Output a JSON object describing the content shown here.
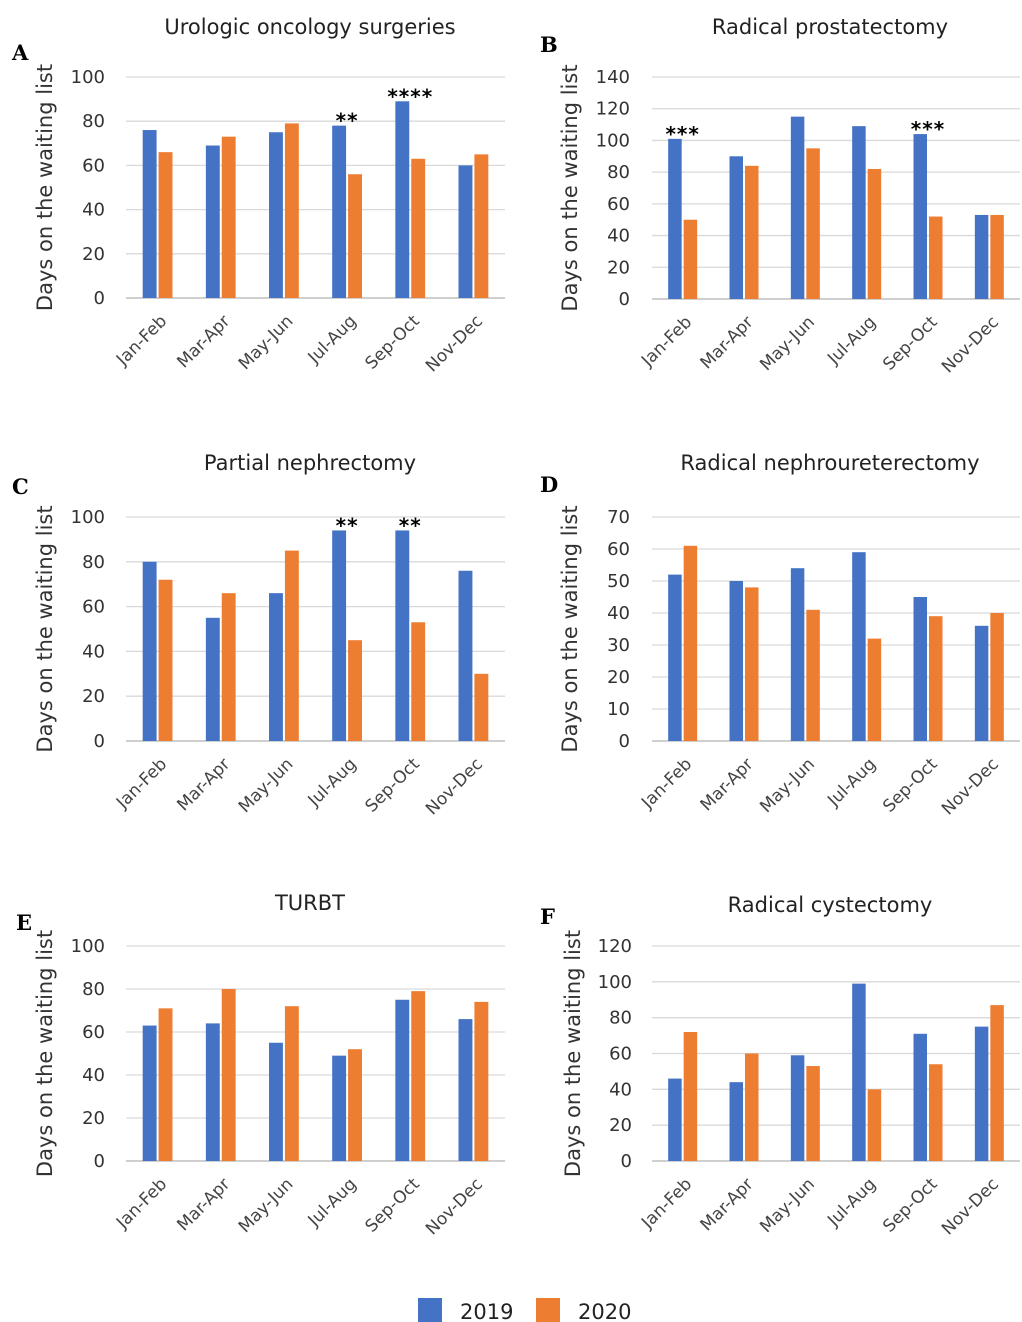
{
  "series_colors": {
    "2019": "#4472C4",
    "2020": "#ED7D31"
  },
  "legend": [
    {
      "name": "2019",
      "color": "#4472C4"
    },
    {
      "name": "2020",
      "color": "#ED7D31"
    }
  ],
  "chart_data": [
    {
      "letter": "A",
      "type": "bar",
      "title": "Urologic oncology surgeries",
      "ylabel": "Days on the waiting list",
      "xlabel": "",
      "categories": [
        "Jan-Feb",
        "Mar-Apr",
        "May-Jun",
        "Jul-Aug",
        "Sep-Oct",
        "Nov-Dec"
      ],
      "ylim": [
        0,
        100
      ],
      "yticks": [
        0,
        20,
        40,
        60,
        80,
        100
      ],
      "grid": true,
      "legend": "bottom",
      "series": [
        {
          "name": "2019",
          "values": [
            76,
            69,
            75,
            78,
            89,
            60
          ]
        },
        {
          "name": "2020",
          "values": [
            66,
            73,
            79,
            56,
            63,
            65
          ]
        }
      ],
      "annotations": [
        {
          "category": "Jul-Aug",
          "text": "**"
        },
        {
          "category": "Sep-Oct",
          "text": "****"
        }
      ]
    },
    {
      "letter": "B",
      "type": "bar",
      "title": "Radical prostatectomy",
      "ylabel": "Days on the waiting list",
      "xlabel": "",
      "categories": [
        "Jan-Feb",
        "Mar-Apr",
        "May-Jun",
        "Jul-Aug",
        "Sep-Oct",
        "Nov-Dec"
      ],
      "ylim": [
        0,
        140
      ],
      "yticks": [
        0,
        20,
        40,
        60,
        80,
        100,
        120,
        140
      ],
      "grid": true,
      "legend": "bottom",
      "series": [
        {
          "name": "2019",
          "values": [
            101,
            90,
            115,
            109,
            104,
            53
          ]
        },
        {
          "name": "2020",
          "values": [
            50,
            84,
            95,
            82,
            52,
            53
          ]
        }
      ],
      "annotations": [
        {
          "category": "Jan-Feb",
          "text": "***"
        },
        {
          "category": "Sep-Oct",
          "text": "***"
        }
      ]
    },
    {
      "letter": "C",
      "type": "bar",
      "title": "Partial nephrectomy",
      "ylabel": "Days on the waiting list",
      "xlabel": "",
      "categories": [
        "Jan-Feb",
        "Mar-Apr",
        "May-Jun",
        "Jul-Aug",
        "Sep-Oct",
        "Nov-Dec"
      ],
      "ylim": [
        0,
        100
      ],
      "yticks": [
        0,
        20,
        40,
        60,
        80,
        100
      ],
      "grid": true,
      "legend": "bottom",
      "series": [
        {
          "name": "2019",
          "values": [
            80,
            55,
            66,
            94,
            94,
            76
          ]
        },
        {
          "name": "2020",
          "values": [
            72,
            66,
            85,
            45,
            53,
            30
          ]
        }
      ],
      "annotations": [
        {
          "category": "Jul-Aug",
          "text": "**"
        },
        {
          "category": "Sep-Oct",
          "text": "**"
        }
      ]
    },
    {
      "letter": "D",
      "type": "bar",
      "title": "Radical nephroureterectomy",
      "ylabel": "Days on the waiting list",
      "xlabel": "",
      "categories": [
        "Jan-Feb",
        "Mar-Apr",
        "May-Jun",
        "Jul-Aug",
        "Sep-Oct",
        "Nov-Dec"
      ],
      "ylim": [
        0,
        70
      ],
      "yticks": [
        0,
        10,
        20,
        30,
        40,
        50,
        60,
        70
      ],
      "grid": true,
      "legend": "bottom",
      "series": [
        {
          "name": "2019",
          "values": [
            52,
            50,
            54,
            59,
            45,
            36
          ]
        },
        {
          "name": "2020",
          "values": [
            61,
            48,
            41,
            32,
            39,
            40
          ]
        }
      ],
      "annotations": []
    },
    {
      "letter": "E",
      "type": "bar",
      "title": "TURBT",
      "ylabel": "Days on the waiting list",
      "xlabel": "",
      "categories": [
        "Jan-Feb",
        "Mar-Apr",
        "May-Jun",
        "Jul-Aug",
        "Sep-Oct",
        "Nov-Dec"
      ],
      "ylim": [
        0,
        100
      ],
      "yticks": [
        0,
        20,
        40,
        60,
        80,
        100
      ],
      "grid": true,
      "legend": "bottom",
      "series": [
        {
          "name": "2019",
          "values": [
            63,
            64,
            55,
            49,
            75,
            66
          ]
        },
        {
          "name": "2020",
          "values": [
            71,
            80,
            72,
            52,
            79,
            74
          ]
        }
      ],
      "annotations": []
    },
    {
      "letter": "F",
      "type": "bar",
      "title": "Radical cystectomy",
      "ylabel": "Days on the waiting list",
      "xlabel": "",
      "categories": [
        "Jan-Feb",
        "Mar-Apr",
        "May-Jun",
        "Jul-Aug",
        "Sep-Oct",
        "Nov-Dec"
      ],
      "ylim": [
        0,
        120
      ],
      "yticks": [
        0,
        20,
        40,
        60,
        80,
        100,
        120
      ],
      "grid": true,
      "legend": "bottom",
      "series": [
        {
          "name": "2019",
          "values": [
            46,
            44,
            59,
            99,
            71,
            75
          ]
        },
        {
          "name": "2020",
          "values": [
            72,
            60,
            53,
            40,
            54,
            87
          ]
        }
      ],
      "annotations": []
    }
  ]
}
